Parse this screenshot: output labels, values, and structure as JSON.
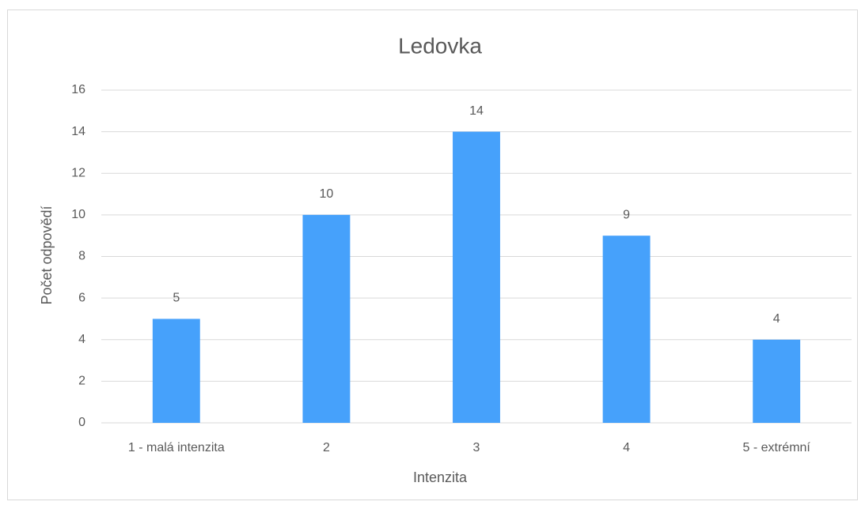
{
  "chart_data": {
    "type": "bar",
    "title": "Ledovka",
    "x_label": "Intenzita",
    "y_label": "Počet odpovědí",
    "categories": [
      "1 - malá intenzita",
      "2",
      "3",
      "4",
      "5 - extrémní"
    ],
    "values": [
      5,
      10,
      14,
      9,
      4
    ],
    "color": "#46a1fb",
    "ylim": [
      0,
      16
    ],
    "yticks": [
      0,
      2,
      4,
      6,
      8,
      10,
      12,
      14,
      16
    ],
    "grid": true
  }
}
